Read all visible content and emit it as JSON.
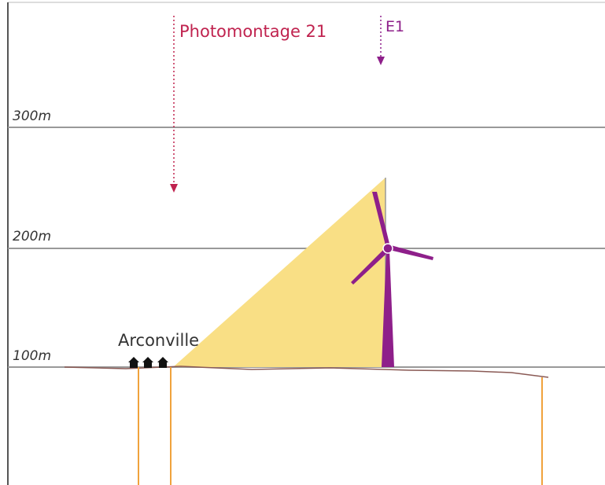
{
  "photomontage": "Photomontage 21",
  "turbine": "E1",
  "village": "Arconville",
  "altitudes": [
    "300m",
    "200m",
    "100m"
  ]
}
